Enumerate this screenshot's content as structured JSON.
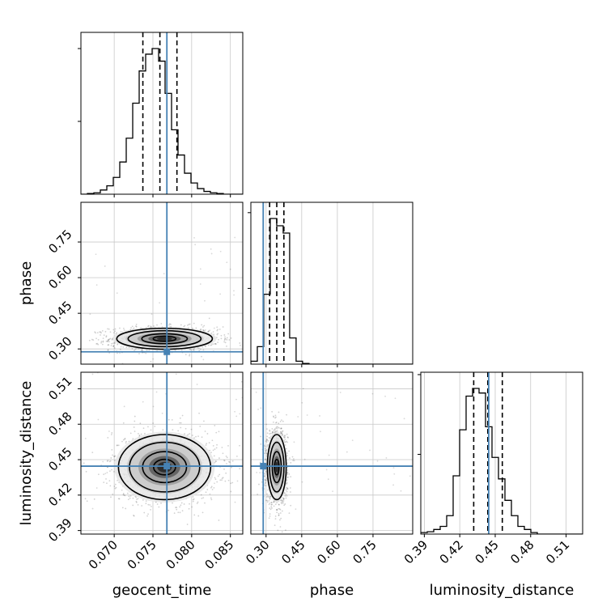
{
  "chart_data": {
    "type": "corner",
    "parameters": [
      "geocent_time",
      "phase",
      "luminosity_distance"
    ],
    "axis_labels": {
      "geocent_time": "geocent_time",
      "phase": "phase",
      "luminosity_distance": "luminosity_distance"
    },
    "ranges": {
      "geocent_time": [
        0.0657,
        0.0866
      ],
      "phase": [
        0.236,
        0.917
      ],
      "luminosity_distance": [
        0.387,
        0.524
      ]
    },
    "ticks": {
      "geocent_time": [
        0.07,
        0.075,
        0.08,
        0.085
      ],
      "phase": [
        0.3,
        0.45,
        0.6,
        0.75
      ],
      "luminosity_distance": [
        0.39,
        0.42,
        0.45,
        0.48,
        0.51
      ]
    },
    "tick_labels": {
      "geocent_time": [
        "0.070",
        "0.075",
        "0.080",
        "0.085"
      ],
      "phase": [
        "0.30",
        "0.45",
        "0.60",
        "0.75"
      ],
      "luminosity_distance": [
        "0.39",
        "0.42",
        "0.45",
        "0.48",
        "0.51"
      ]
    },
    "truths": {
      "geocent_time": 0.0768,
      "phase": 0.288,
      "luminosity_distance": 0.4445
    },
    "quantiles": {
      "geocent_time": [
        0.0737,
        0.0759,
        0.0781
      ],
      "phase": [
        0.315,
        0.345,
        0.375
      ],
      "luminosity_distance": [
        0.4318,
        0.4437,
        0.456
      ]
    },
    "histograms": {
      "geocent_time": {
        "bin_start": 0.0657,
        "bin_width": 0.000836,
        "counts": [
          0,
          0.5,
          1,
          3,
          6,
          12,
          23,
          40,
          65,
          88,
          100,
          104,
          95,
          72,
          46,
          28,
          15,
          8,
          4,
          2,
          1,
          0.5,
          0,
          0,
          0
        ]
      },
      "phase": {
        "bin_start": 0.236,
        "bin_width": 0.0272,
        "counts": [
          2,
          12,
          48,
          100,
          95,
          90,
          18,
          2,
          0.5,
          0,
          0,
          0,
          0,
          0,
          0,
          0,
          0,
          0,
          0,
          0,
          0,
          0,
          0,
          0,
          0
        ]
      },
      "luminosity_distance": {
        "bin_start": 0.387,
        "bin_width": 0.00548,
        "counts": [
          1,
          1.5,
          3,
          5,
          12,
          38,
          68,
          90,
          95,
          92,
          70,
          50,
          36,
          22,
          12,
          5,
          3,
          1,
          0,
          0,
          0,
          0,
          0,
          0,
          0
        ]
      }
    },
    "density_2d": {
      "phase_vs_geocent_time": {
        "center": [
          0.0765,
          0.343
        ],
        "sigma": [
          0.0028,
          0.02
        ],
        "contour_levels_sigma": [
          0.5,
          1.0,
          1.6,
          2.1
        ]
      },
      "luminosity_distance_vs_geocent_time": {
        "center": [
          0.0765,
          0.4437
        ],
        "sigma": [
          0.0027,
          0.0125
        ],
        "contour_levels_sigma": [
          0.5,
          1.0,
          1.6,
          2.1
        ]
      },
      "luminosity_distance_vs_phase": {
        "center": [
          0.345,
          0.4437
        ],
        "sigma": [
          0.018,
          0.0125
        ],
        "contour_levels_sigma": [
          0.5,
          1.0,
          1.6,
          2.1
        ]
      }
    },
    "truth_color": "#4682b4",
    "grid": true
  }
}
